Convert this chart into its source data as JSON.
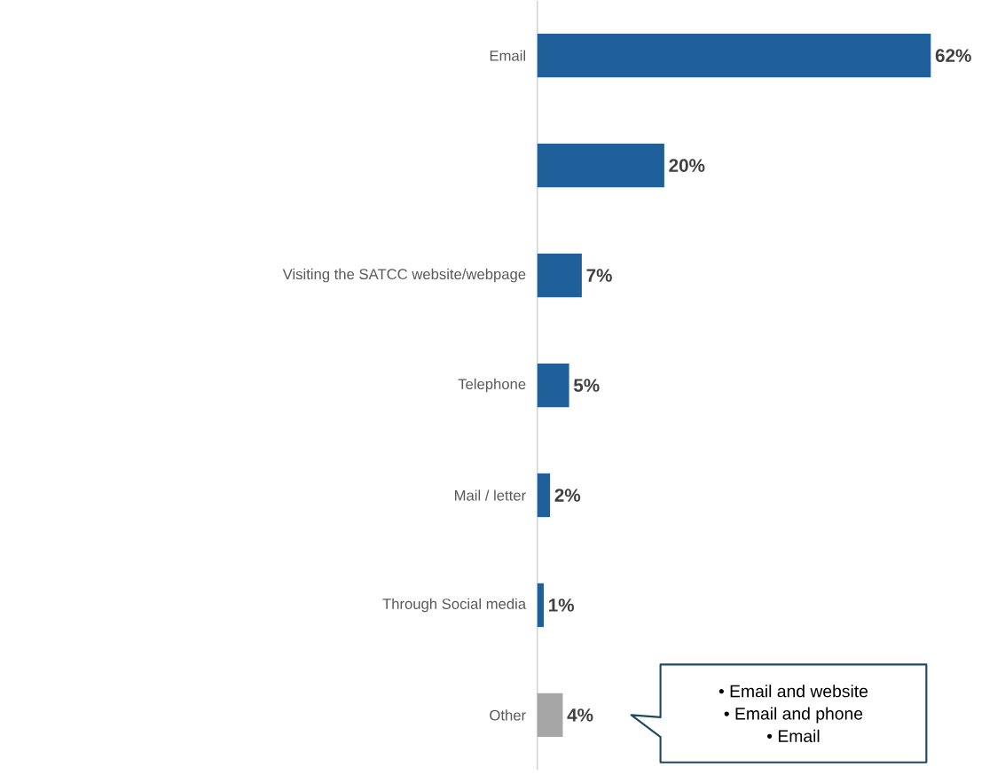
{
  "chart_data": {
    "type": "bar",
    "orientation": "horizontal",
    "categories": [
      "Email",
      null,
      "Visiting the SATCC website/webpage",
      "Telephone",
      "Mail / letter",
      "Through Social media",
      "Other"
    ],
    "values": [
      62,
      20,
      7,
      5,
      2,
      1,
      4
    ],
    "value_labels": [
      "62%",
      "20%",
      "7%",
      "5%",
      "2%",
      "1%",
      "4%"
    ],
    "colors": [
      "#1f5f9a",
      "#1f5f9a",
      "#1f5f9a",
      "#1f5f9a",
      "#1f5f9a",
      "#1f5f9a",
      "#a6a6a6"
    ],
    "tick_labels": "y",
    "annotations": [
      "•  Email and website",
      "•  Email and phone",
      "•  Email"
    ]
  }
}
